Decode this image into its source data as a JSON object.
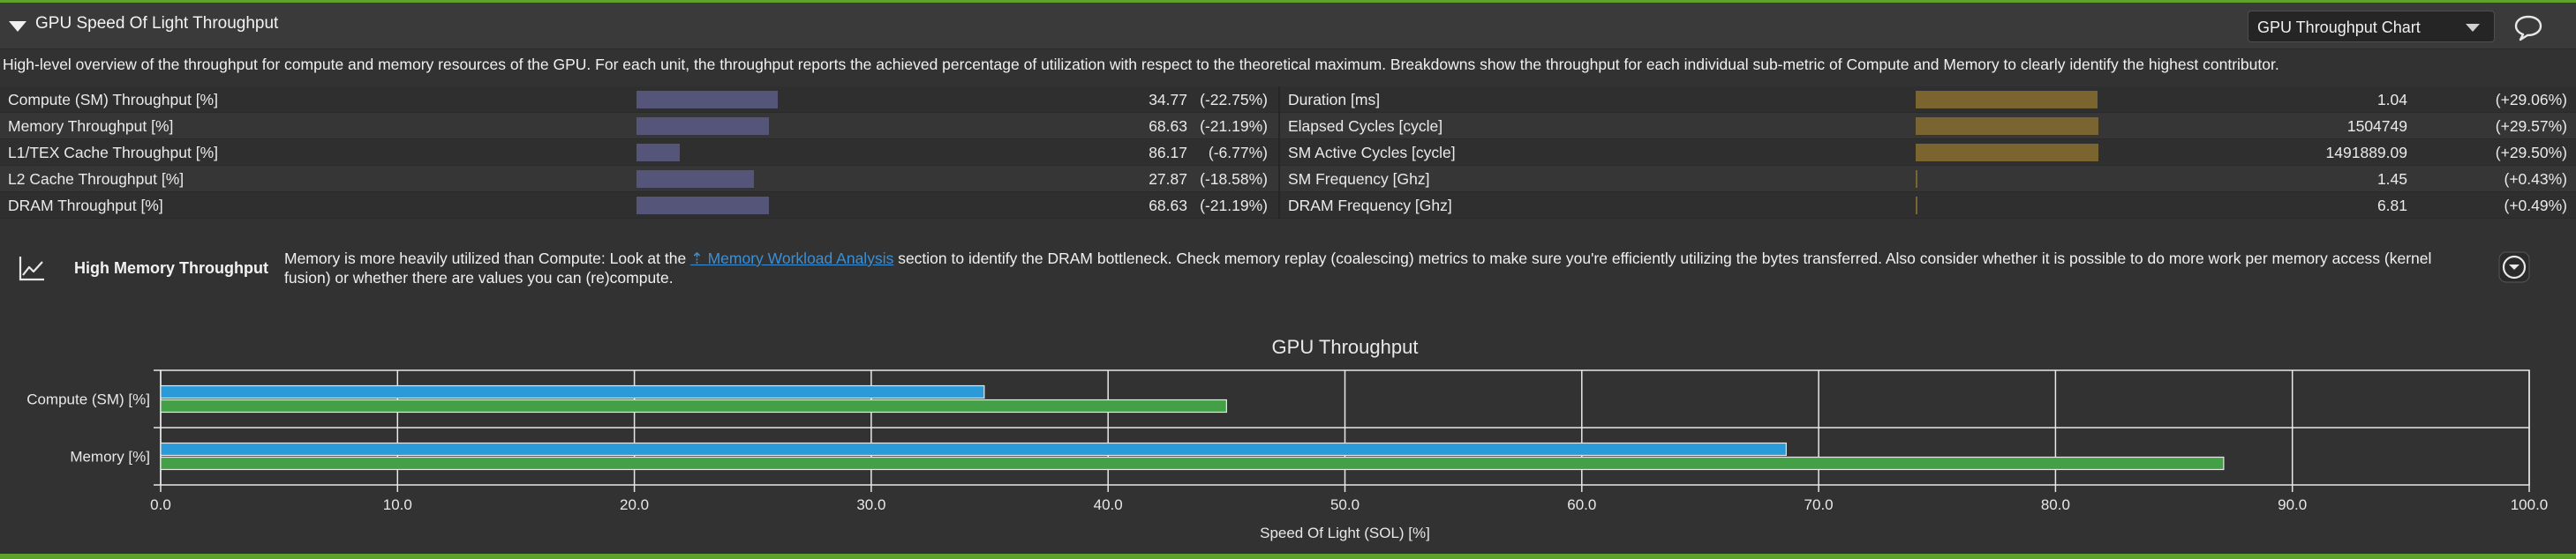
{
  "header": {
    "title": "GPU Speed Of Light Throughput",
    "chart_select_value": "GPU Throughput Chart",
    "comment_icon": "comment-icon",
    "collapse_icon": "triangle-down-icon"
  },
  "description": "High-level overview of the throughput for compute and memory resources of the GPU. For each unit, the throughput reports the achieved percentage of utilization with respect to the theoretical maximum. Breakdowns show the throughput for each individual sub-metric of Compute and Memory to clearly identify the highest contributor.",
  "metrics_left": [
    {
      "label": "Compute (SM) Throughput [%]",
      "value": "34.77",
      "delta": "(-22.75%)",
      "bar_fraction": 0.3477
    },
    {
      "label": "Memory Throughput [%]",
      "value": "68.63",
      "delta": "(-21.19%)",
      "bar_fraction": 0.3252
    },
    {
      "label": "L1/TEX Cache Throughput [%]",
      "value": "86.17",
      "delta": "(-6.77%)",
      "bar_fraction": 0.1068
    },
    {
      "label": "L2 Cache Throughput [%]",
      "value": "27.87",
      "delta": "(-18.58%)",
      "bar_fraction": 0.2893
    },
    {
      "label": "DRAM Throughput [%]",
      "value": "68.63",
      "delta": "(-21.19%)",
      "bar_fraction": 0.3252
    }
  ],
  "metrics_right": [
    {
      "label": "Duration [ms]",
      "value": "1.04",
      "delta": "(+29.06%)",
      "bar_fraction": 0.4469
    },
    {
      "label": "Elapsed Cycles [cycle]",
      "value": "1504749",
      "delta": "(+29.57%)",
      "bar_fraction": 0.451
    },
    {
      "label": "SM Active Cycles [cycle]",
      "value": "1491889.09",
      "delta": "(+29.50%)",
      "bar_fraction": 0.451
    },
    {
      "label": "SM Frequency [Ghz]",
      "value": "1.45",
      "delta": "(+0.43%)",
      "bar_fraction": 0.0041
    },
    {
      "label": "DRAM Frequency [Ghz]",
      "value": "6.81",
      "delta": "(+0.49%)",
      "bar_fraction": 0.0041
    }
  ],
  "colors": {
    "left_bar": "#55557a",
    "right_bar": "#7a6530",
    "bar_blue": "#2a9bd8",
    "bar_green": "#43a047",
    "accent_green": "#5ea12b",
    "link": "#3a8fd6"
  },
  "recommendation": {
    "icon": "line-chart-icon",
    "title": "High Memory Throughput",
    "text_before": "Memory is more heavily utilized than Compute: Look at the ",
    "link_text": "Memory Workload Analysis",
    "text_after": " section to identify the DRAM bottleneck. Check memory replay (coalescing) metrics to make sure you're efficiently utilizing the bytes transferred. Also consider whether it is possible to do more work per memory access (kernel fusion) or whether there are values you can (re)compute.",
    "toggle_icon": "chevron-down-circle-icon"
  },
  "chart_data": {
    "type": "bar",
    "orientation": "horizontal",
    "title": "GPU Throughput",
    "xlabel": "Speed Of Light (SOL) [%]",
    "ylabel": "",
    "categories": [
      "Compute (SM) [%]",
      "Memory [%]"
    ],
    "series": [
      {
        "values": [
          34.77,
          68.63
        ],
        "color": "#2a9bd8"
      },
      {
        "values": [
          45.0,
          87.1
        ],
        "color": "#43a047"
      }
    ],
    "xlim": [
      0,
      100
    ],
    "xticks": [
      "0.0",
      "10.0",
      "20.0",
      "30.0",
      "40.0",
      "50.0",
      "60.0",
      "70.0",
      "80.0",
      "90.0",
      "100.0"
    ],
    "grid": true
  }
}
